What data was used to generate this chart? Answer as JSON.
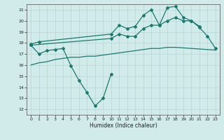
{
  "xlabel": "Humidex (Indice chaleur)",
  "bg_color": "#d1eaea",
  "grid_color": "#b8d4d4",
  "line_color": "#1a7a6e",
  "x_ticks": [
    0,
    1,
    2,
    3,
    4,
    5,
    6,
    7,
    8,
    9,
    10,
    11,
    12,
    13,
    14,
    15,
    16,
    17,
    18,
    19,
    20,
    21,
    22,
    23
  ],
  "ylim": [
    11.5,
    21.5
  ],
  "xlim": [
    -0.5,
    23.5
  ],
  "yticks": [
    12,
    13,
    14,
    15,
    16,
    17,
    18,
    19,
    20,
    21
  ],
  "line1_y": [
    17.9,
    18.1,
    null,
    null,
    null,
    null,
    null,
    null,
    null,
    null,
    18.8,
    19.6,
    19.3,
    19.5,
    20.5,
    21.0,
    19.6,
    21.2,
    21.3,
    20.3,
    20.0,
    19.4,
    18.6,
    17.5
  ],
  "line2_y": [
    17.8,
    null,
    null,
    null,
    null,
    null,
    null,
    null,
    null,
    null,
    18.4,
    18.8,
    18.6,
    18.6,
    19.3,
    19.6,
    19.6,
    20.0,
    20.3,
    20.0,
    20.0,
    19.5,
    null,
    null
  ],
  "line3_y": [
    17.8,
    17.0,
    17.3,
    17.4,
    17.5,
    15.9,
    14.6,
    13.5,
    12.3,
    13.0,
    15.2,
    null,
    null,
    null,
    null,
    null,
    null,
    null,
    null,
    null,
    null,
    null,
    null,
    null
  ],
  "line4_y": [
    16.0,
    16.2,
    16.3,
    16.5,
    16.6,
    16.7,
    16.7,
    16.8,
    16.8,
    16.9,
    17.0,
    17.1,
    17.2,
    17.3,
    17.4,
    17.5,
    17.5,
    17.6,
    17.6,
    17.55,
    17.5,
    17.45,
    17.4,
    17.35
  ]
}
